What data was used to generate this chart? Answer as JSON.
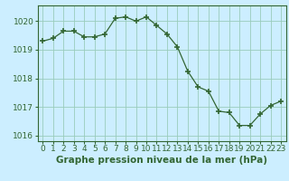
{
  "x": [
    0,
    1,
    2,
    3,
    4,
    5,
    6,
    7,
    8,
    9,
    10,
    11,
    12,
    13,
    14,
    15,
    16,
    17,
    18,
    19,
    20,
    21,
    22,
    23
  ],
  "y": [
    1019.3,
    1019.4,
    1019.65,
    1019.65,
    1019.45,
    1019.45,
    1019.55,
    1020.1,
    1020.15,
    1020.0,
    1020.15,
    1019.85,
    1019.55,
    1019.1,
    1018.25,
    1017.7,
    1017.55,
    1016.85,
    1016.8,
    1016.35,
    1016.35,
    1016.75,
    1017.05,
    1017.2
  ],
  "ylim": [
    1015.8,
    1020.55
  ],
  "yticks": [
    1016,
    1017,
    1018,
    1019,
    1020
  ],
  "xticks": [
    0,
    1,
    2,
    3,
    4,
    5,
    6,
    7,
    8,
    9,
    10,
    11,
    12,
    13,
    14,
    15,
    16,
    17,
    18,
    19,
    20,
    21,
    22,
    23
  ],
  "xlabel": "Graphe pression niveau de la mer (hPa)",
  "line_color": "#336633",
  "marker": "+",
  "marker_size": 4,
  "bg_color": "#cceeff",
  "grid_color": "#99ccbb",
  "tick_label_color": "#336633",
  "xlabel_color": "#336633",
  "xlabel_fontsize": 7.5,
  "tick_fontsize": 6.5
}
